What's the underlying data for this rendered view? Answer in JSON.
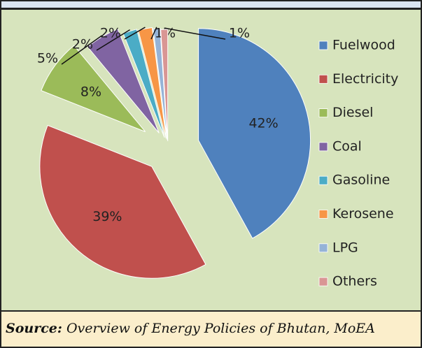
{
  "chart_data": {
    "type": "pie",
    "categories": [
      "Fuelwood",
      "Electricity",
      "Diesel",
      "Coal",
      "Gasoline",
      "Kerosene",
      "LPG",
      "Others"
    ],
    "values": [
      42,
      39,
      8,
      5,
      2,
      2,
      1,
      1
    ],
    "value_labels": [
      "42%",
      "39%",
      "8%",
      "5%",
      "2%",
      "2%",
      "1%",
      "1%"
    ],
    "colors": [
      "#4f81bd",
      "#c0504d",
      "#9bbb59",
      "#8064a2",
      "#4bacc6",
      "#f79646",
      "#95b3d7",
      "#d99694"
    ],
    "legend": "right"
  },
  "source": {
    "label": "Source:",
    "text": "Overview of Energy Policies of Bhutan, MoEA"
  }
}
